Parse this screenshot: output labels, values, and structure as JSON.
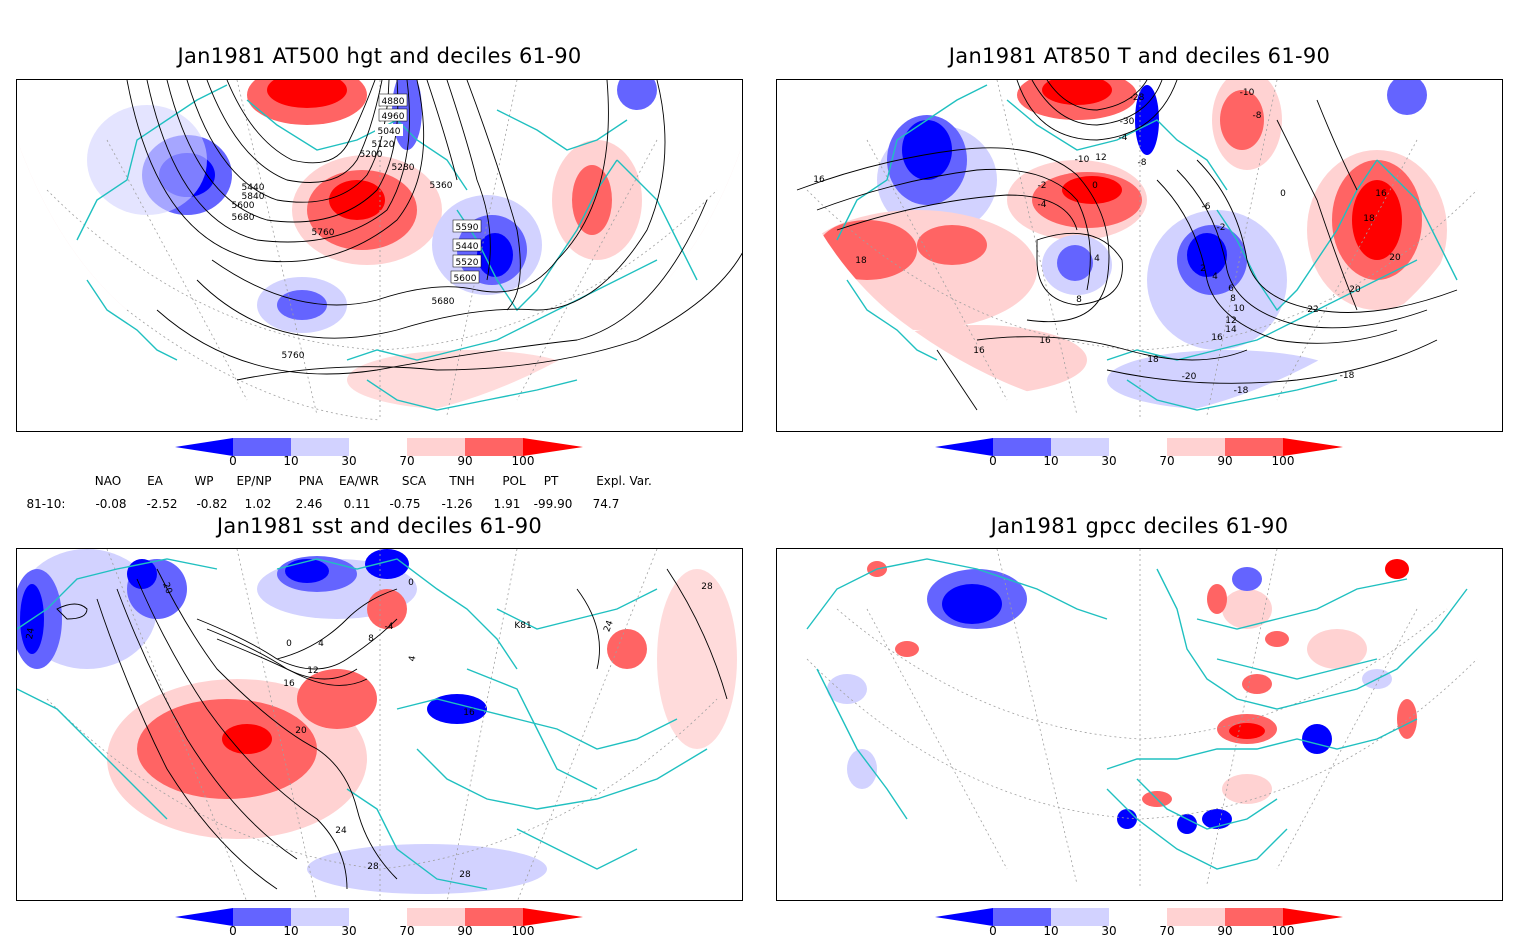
{
  "panels": [
    {
      "title": "Jan1981 AT500 hgt and deciles 61-90",
      "contour_labels": [
        "4880",
        "4960",
        "5040",
        "5120",
        "5200",
        "5280",
        "5360",
        "5440",
        "5520",
        "5600",
        "5680",
        "5760",
        "5840",
        "5590",
        "5440",
        "5520",
        "5600",
        "5680",
        "5760"
      ]
    },
    {
      "title": "Jan1981 AT850 T and deciles 61-90",
      "contour_labels": [
        "-28",
        "-30",
        "-4",
        "-10",
        "-8",
        "-10",
        "12",
        "-8",
        "-2",
        "-4",
        "0",
        "16",
        "18",
        "16",
        "18",
        "20",
        "22",
        "20",
        "-18",
        "4",
        "2",
        "4",
        "6",
        "8",
        "10",
        "12",
        "14",
        "16",
        "18",
        "-20",
        "-18",
        "16",
        "16",
        "8",
        "-6",
        "-2",
        "0"
      ]
    },
    {
      "title": "Jan1981 sst and deciles 61-90",
      "contour_labels": [
        "24",
        "20",
        "0",
        "4",
        "8",
        "12",
        "16",
        "20",
        "24",
        "28",
        "28",
        "28",
        "24",
        "16",
        "-4",
        "4",
        "0",
        "K81"
      ]
    },
    {
      "title": "Jan1981 gpcc deciles 61-90",
      "contour_labels": []
    }
  ],
  "colorbar": {
    "labels": [
      "0",
      "10",
      "30",
      "70",
      "90",
      "100"
    ],
    "colors": [
      "#0000ff",
      "#6464ff",
      "#d2d2ff",
      "#ffffff",
      "#ffd2d2",
      "#ff6464",
      "#ff0000"
    ]
  },
  "indices": {
    "headers": [
      "NAO",
      "EA",
      "WP",
      "EP/NP",
      "PNA",
      "EA/WR",
      "SCA",
      "TNH",
      "POL",
      "PT",
      "Expl. Var."
    ],
    "row_label": "81-10:",
    "values": [
      "-0.08",
      "-2.52",
      "-0.82",
      "1.02",
      "2.46",
      "0.11",
      "-0.75",
      "-1.26",
      "1.91",
      "-99.90",
      "74.7"
    ]
  },
  "style": {
    "coast_color": "#20c0c0",
    "contour_color": "#000000",
    "grid_color": "#a0a0a0"
  }
}
